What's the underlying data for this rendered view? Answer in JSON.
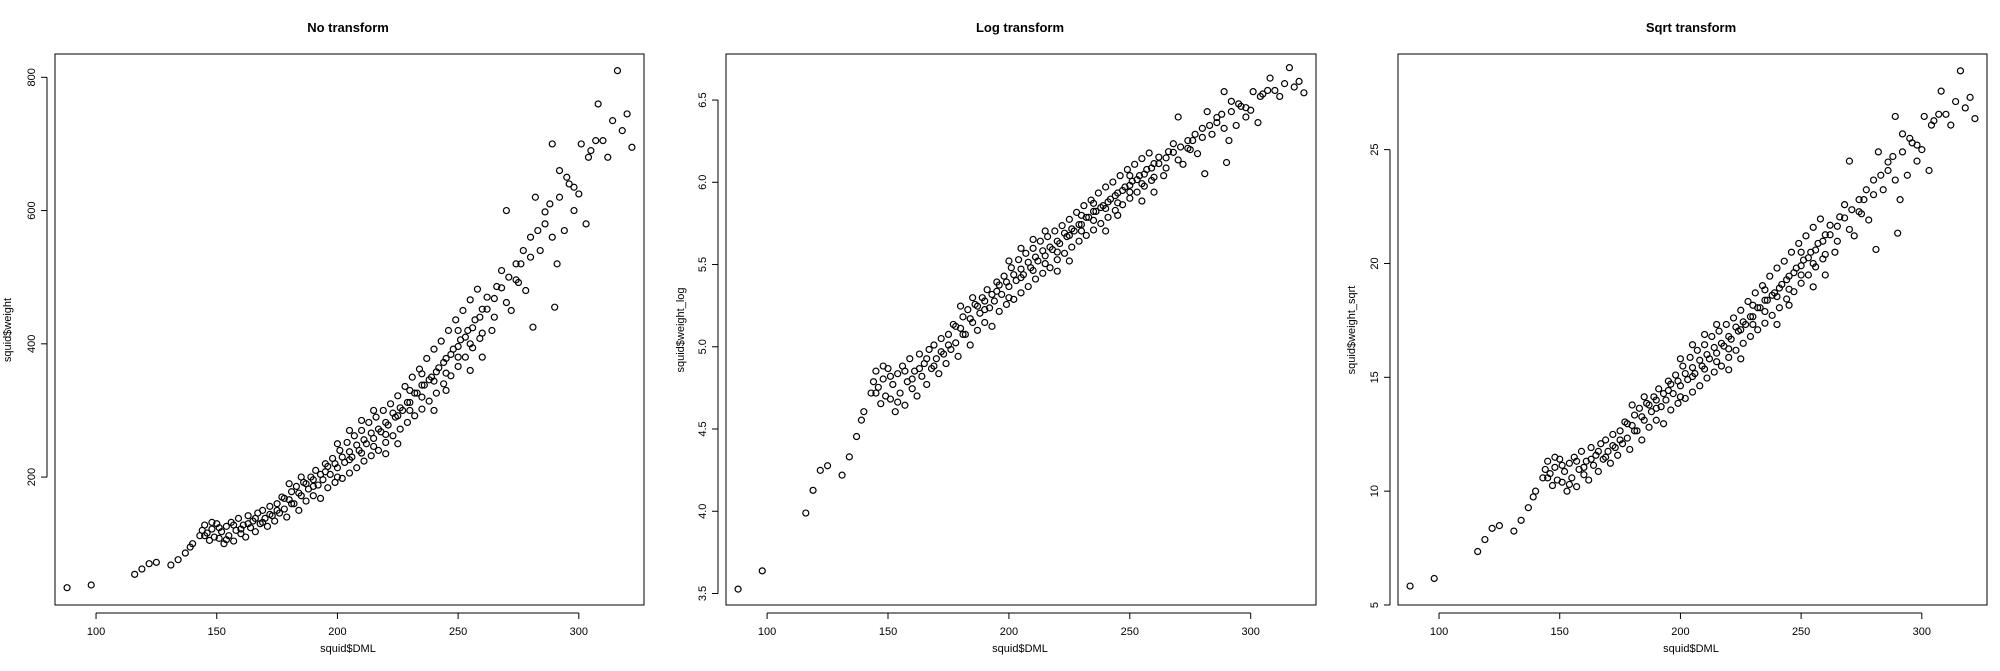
{
  "chart_data": [
    {
      "type": "scatter",
      "title": "No transform",
      "xlabel": "squid$DML",
      "ylabel": "squid$weight",
      "xlim": [
        83,
        327
      ],
      "ylim": [
        8,
        835
      ],
      "xticks": [
        100,
        150,
        200,
        250,
        300
      ],
      "yticks": [
        200,
        400,
        600,
        800
      ],
      "yfunc": "raw",
      "series": [
        {
          "name": "squid",
          "points": []
        }
      ]
    },
    {
      "type": "scatter",
      "title": "Log transform",
      "xlabel": "squid$DML",
      "ylabel": "squid$weight_log",
      "xlim": [
        83,
        327
      ],
      "ylim": [
        3.43,
        6.78
      ],
      "xticks": [
        100,
        150,
        200,
        250,
        300
      ],
      "yticks": [
        3.5,
        4.0,
        4.5,
        5.0,
        5.5,
        6.0,
        6.5
      ],
      "yfunc": "log",
      "series": [
        {
          "name": "squid",
          "points": []
        }
      ]
    },
    {
      "type": "scatter",
      "title": "Sqrt transform",
      "xlabel": "squid$DML",
      "ylabel": "squid$weight_sqrt",
      "xlim": [
        83,
        327
      ],
      "ylim": [
        5.0,
        29.2
      ],
      "xticks": [
        100,
        150,
        200,
        250,
        300
      ],
      "yticks": [
        5,
        10,
        15,
        20,
        25
      ],
      "yfunc": "sqrt",
      "series": [
        {
          "name": "squid",
          "points": []
        }
      ]
    }
  ],
  "squid_observations": [
    [
      88,
      34
    ],
    [
      98,
      38
    ],
    [
      116,
      54
    ],
    [
      119,
      62
    ],
    [
      122,
      70
    ],
    [
      125,
      72
    ],
    [
      131,
      68
    ],
    [
      134,
      76
    ],
    [
      137,
      86
    ],
    [
      139,
      95
    ],
    [
      140,
      100
    ],
    [
      143,
      112
    ],
    [
      144,
      120
    ],
    [
      145,
      128
    ],
    [
      146,
      116
    ],
    [
      147,
      105
    ],
    [
      148,
      122
    ],
    [
      149,
      110
    ],
    [
      150,
      130
    ],
    [
      151,
      108
    ],
    [
      152,
      118
    ],
    [
      153,
      100
    ],
    [
      154,
      126
    ],
    [
      155,
      112
    ],
    [
      156,
      132
    ],
    [
      157,
      104
    ],
    [
      158,
      120
    ],
    [
      159,
      138
    ],
    [
      160,
      115
    ],
    [
      161,
      128
    ],
    [
      162,
      110
    ],
    [
      163,
      142
    ],
    [
      164,
      124
    ],
    [
      165,
      134
    ],
    [
      166,
      118
    ],
    [
      167,
      146
    ],
    [
      168,
      130
    ],
    [
      169,
      150
    ],
    [
      170,
      138
    ],
    [
      171,
      126
    ],
    [
      172,
      156
    ],
    [
      173,
      142
    ],
    [
      174,
      134
    ],
    [
      175,
      160
    ],
    [
      176,
      146
    ],
    [
      177,
      170
    ],
    [
      178,
      152
    ],
    [
      179,
      140
    ],
    [
      180,
      166
    ],
    [
      181,
      178
    ],
    [
      182,
      160
    ],
    [
      183,
      186
    ],
    [
      184,
      150
    ],
    [
      185,
      172
    ],
    [
      186,
      192
    ],
    [
      187,
      164
    ],
    [
      188,
      182
    ],
    [
      189,
      200
    ],
    [
      190,
      172
    ],
    [
      191,
      210
    ],
    [
      192,
      188
    ],
    [
      193,
      168
    ],
    [
      194,
      196
    ],
    [
      195,
      220
    ],
    [
      196,
      184
    ],
    [
      197,
      204
    ],
    [
      198,
      228
    ],
    [
      199,
      192
    ],
    [
      200,
      214
    ],
    [
      201,
      240
    ],
    [
      202,
      198
    ],
    [
      203,
      222
    ],
    [
      204,
      252
    ],
    [
      205,
      206
    ],
    [
      206,
      230
    ],
    [
      207,
      262
    ],
    [
      208,
      214
    ],
    [
      209,
      240
    ],
    [
      210,
      270
    ],
    [
      211,
      224
    ],
    [
      212,
      250
    ],
    [
      213,
      282
    ],
    [
      214,
      232
    ],
    [
      215,
      258
    ],
    [
      216,
      290
    ],
    [
      217,
      240
    ],
    [
      218,
      268
    ],
    [
      219,
      300
    ],
    [
      220,
      252
    ],
    [
      221,
      278
    ],
    [
      222,
      310
    ],
    [
      223,
      262
    ],
    [
      224,
      290
    ],
    [
      225,
      322
    ],
    [
      226,
      272
    ],
    [
      227,
      300
    ],
    [
      228,
      336
    ],
    [
      229,
      282
    ],
    [
      230,
      312
    ],
    [
      231,
      350
    ],
    [
      232,
      292
    ],
    [
      233,
      326
    ],
    [
      234,
      362
    ],
    [
      235,
      302
    ],
    [
      236,
      338
    ],
    [
      237,
      378
    ],
    [
      238,
      314
    ],
    [
      239,
      350
    ],
    [
      240,
      392
    ],
    [
      241,
      326
    ],
    [
      242,
      364
    ],
    [
      243,
      404
    ],
    [
      244,
      340
    ],
    [
      245,
      378
    ],
    [
      246,
      420
    ],
    [
      247,
      352
    ],
    [
      248,
      392
    ],
    [
      249,
      436
    ],
    [
      250,
      366
    ],
    [
      251,
      406
    ],
    [
      252,
      450
    ],
    [
      253,
      380
    ],
    [
      254,
      420
    ],
    [
      255,
      466
    ],
    [
      256,
      394
    ],
    [
      257,
      436
    ],
    [
      258,
      482
    ],
    [
      259,
      408
    ],
    [
      260,
      452
    ],
    [
      262,
      470
    ],
    [
      264,
      420
    ],
    [
      266,
      486
    ],
    [
      268,
      510
    ],
    [
      270,
      600
    ],
    [
      272,
      450
    ],
    [
      274,
      496
    ],
    [
      276,
      520
    ],
    [
      278,
      480
    ],
    [
      280,
      560
    ],
    [
      281,
      425
    ],
    [
      282,
      620
    ],
    [
      284,
      540
    ],
    [
      286,
      580
    ],
    [
      288,
      610
    ],
    [
      289,
      700
    ],
    [
      290,
      455
    ],
    [
      291,
      520
    ],
    [
      292,
      660
    ],
    [
      294,
      570
    ],
    [
      296,
      640
    ],
    [
      298,
      600
    ],
    [
      300,
      625
    ],
    [
      303,
      580
    ],
    [
      305,
      690
    ],
    [
      308,
      760
    ],
    [
      310,
      705
    ],
    [
      312,
      680
    ],
    [
      314,
      735
    ],
    [
      316,
      810
    ],
    [
      318,
      720
    ],
    [
      320,
      745
    ],
    [
      322,
      695
    ],
    [
      145,
      112
    ],
    [
      148,
      132
    ],
    [
      151,
      124
    ],
    [
      154,
      106
    ],
    [
      157,
      128
    ],
    [
      160,
      122
    ],
    [
      163,
      130
    ],
    [
      166,
      138
    ],
    [
      169,
      132
    ],
    [
      172,
      144
    ],
    [
      175,
      150
    ],
    [
      178,
      168
    ],
    [
      181,
      160
    ],
    [
      184,
      176
    ],
    [
      187,
      190
    ],
    [
      190,
      196
    ],
    [
      193,
      204
    ],
    [
      196,
      216
    ],
    [
      199,
      220
    ],
    [
      202,
      230
    ],
    [
      205,
      238
    ],
    [
      208,
      248
    ],
    [
      211,
      256
    ],
    [
      214,
      266
    ],
    [
      217,
      272
    ],
    [
      220,
      282
    ],
    [
      223,
      296
    ],
    [
      226,
      304
    ],
    [
      229,
      312
    ],
    [
      232,
      326
    ],
    [
      235,
      338
    ],
    [
      238,
      346
    ],
    [
      241,
      358
    ],
    [
      244,
      372
    ],
    [
      247,
      384
    ],
    [
      250,
      396
    ],
    [
      253,
      410
    ],
    [
      256,
      424
    ],
    [
      259,
      440
    ],
    [
      262,
      452
    ],
    [
      265,
      468
    ],
    [
      268,
      484
    ],
    [
      271,
      500
    ],
    [
      274,
      520
    ],
    [
      277,
      540
    ],
    [
      280,
      530
    ],
    [
      283,
      570
    ],
    [
      286,
      598
    ],
    [
      289,
      560
    ],
    [
      292,
      620
    ],
    [
      295,
      650
    ],
    [
      298,
      635
    ],
    [
      301,
      700
    ],
    [
      304,
      680
    ],
    [
      307,
      705
    ],
    [
      180,
      190
    ],
    [
      185,
      200
    ],
    [
      190,
      186
    ],
    [
      195,
      208
    ],
    [
      200,
      200
    ],
    [
      205,
      226
    ],
    [
      210,
      236
    ],
    [
      215,
      246
    ],
    [
      220,
      264
    ],
    [
      225,
      292
    ],
    [
      230,
      300
    ],
    [
      235,
      320
    ],
    [
      240,
      344
    ],
    [
      245,
      356
    ],
    [
      250,
      380
    ],
    [
      255,
      400
    ],
    [
      260,
      416
    ],
    [
      265,
      440
    ],
    [
      270,
      462
    ],
    [
      275,
      492
    ],
    [
      200,
      250
    ],
    [
      205,
      270
    ],
    [
      210,
      285
    ],
    [
      215,
      300
    ],
    [
      220,
      235
    ],
    [
      225,
      250
    ],
    [
      230,
      330
    ],
    [
      235,
      355
    ],
    [
      240,
      300
    ],
    [
      245,
      330
    ],
    [
      250,
      420
    ],
    [
      255,
      360
    ],
    [
      260,
      380
    ]
  ]
}
